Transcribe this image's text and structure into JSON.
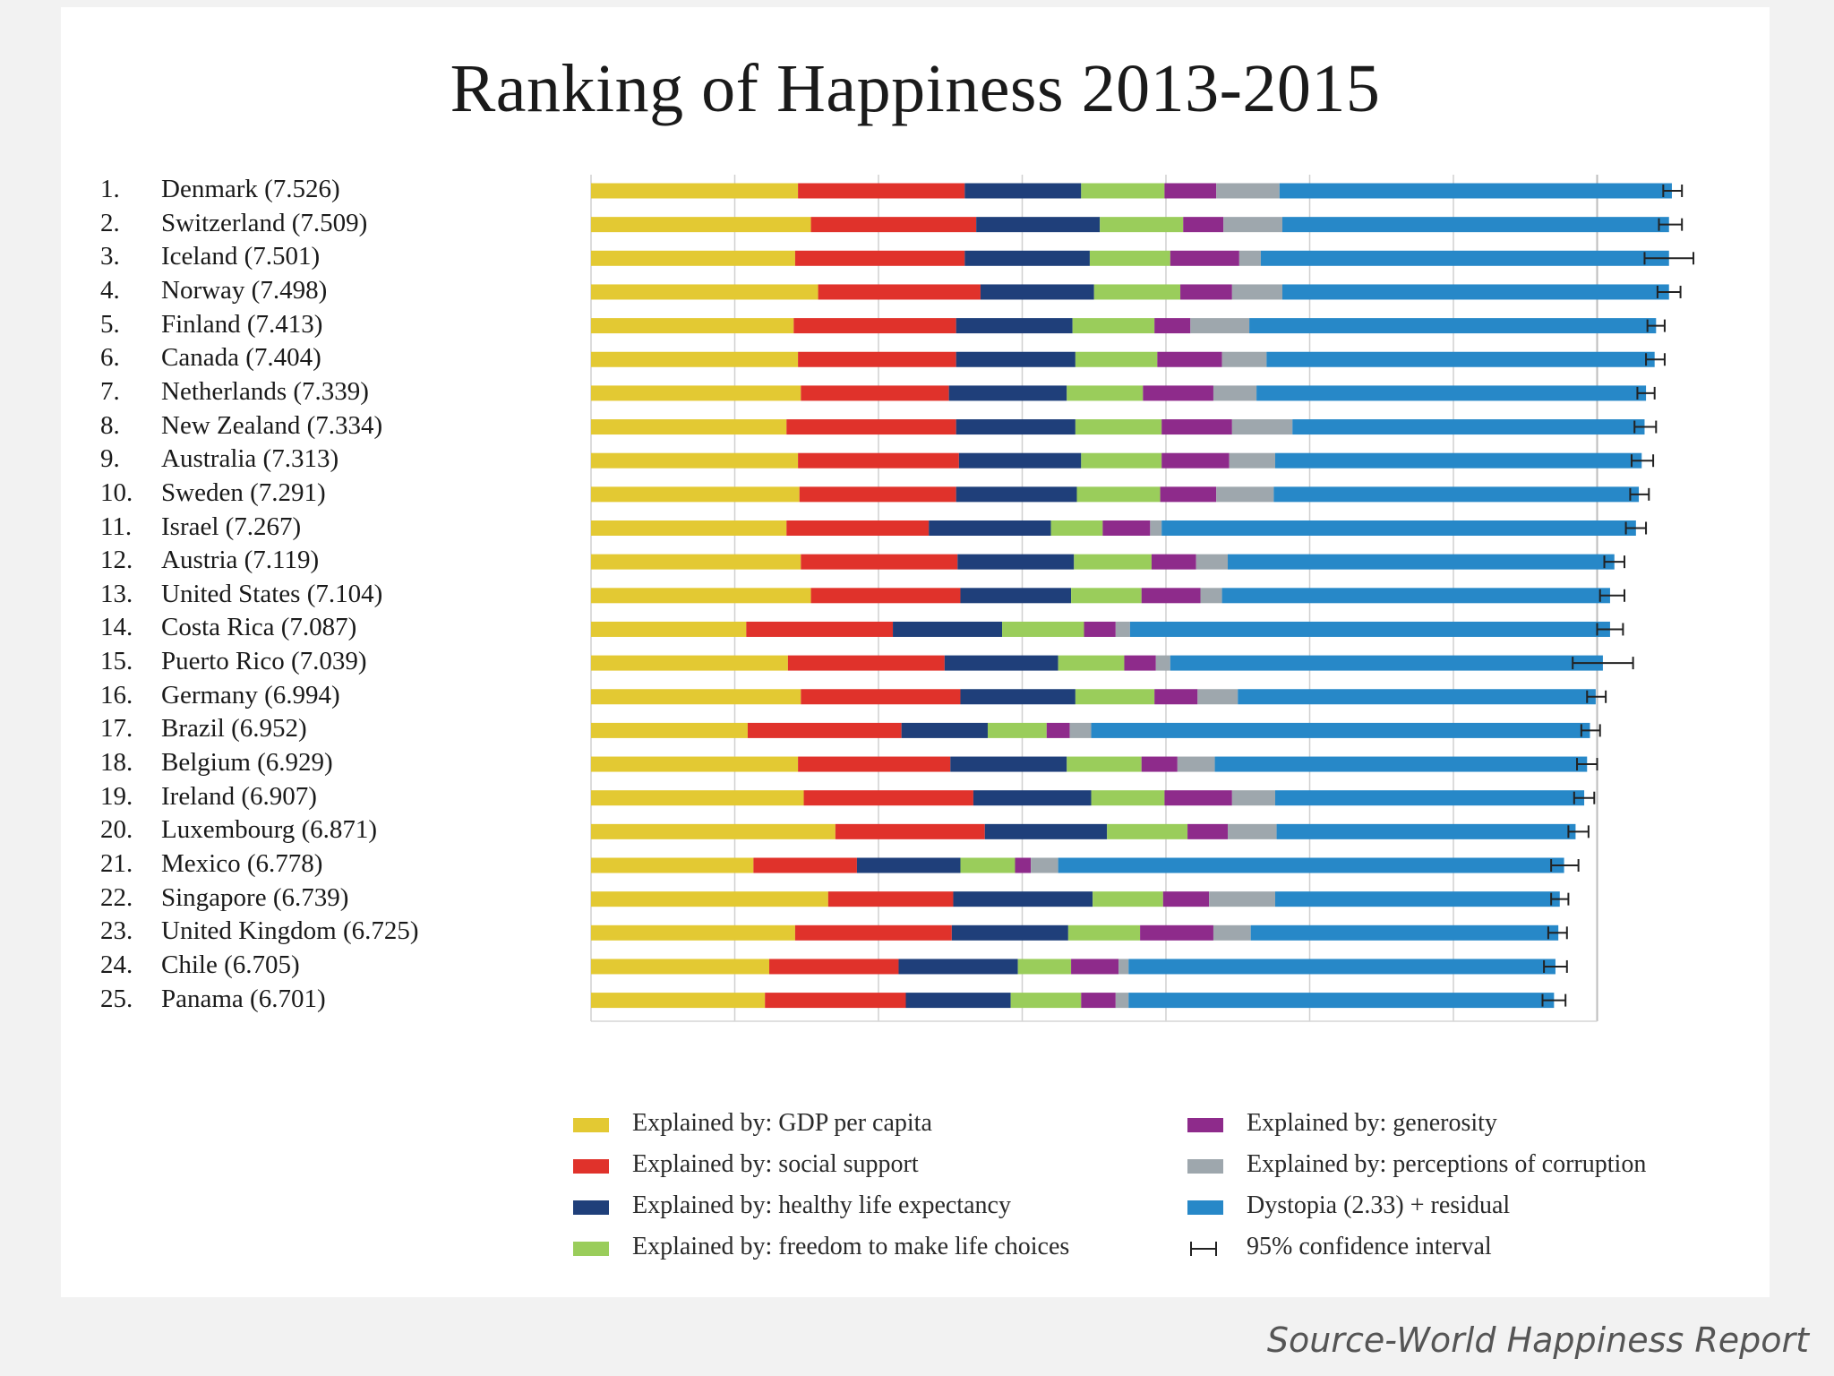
{
  "source": "Source-World Happiness Report",
  "chart_data": {
    "type": "bar",
    "orientation": "horizontal",
    "stacked": true,
    "title": "Ranking of Happiness 2013-2015",
    "xlim": [
      0,
      7
    ],
    "grid": true,
    "legend_position": "bottom",
    "components": [
      {
        "name": "Explained by: GDP per capita",
        "color": "#e3c933"
      },
      {
        "name": "Explained by: social support",
        "color": "#e0322b"
      },
      {
        "name": "Explained by: healthy life expectancy",
        "color": "#1f3f7a"
      },
      {
        "name": "Explained by: freedom to make life choices",
        "color": "#9acd5b"
      },
      {
        "name": "Explained by: generosity",
        "color": "#8e2b8b"
      },
      {
        "name": "Explained by: perceptions of corruption",
        "color": "#9ea7ad"
      },
      {
        "name": "Dystopia (2.33) + residual",
        "color": "#2788c8"
      }
    ],
    "ci_legend_label": "95% confidence interval",
    "rows": [
      {
        "rank": "1.",
        "label": "Denmark (7.526)",
        "values": [
          1.44,
          1.16,
          0.81,
          0.58,
          0.36,
          0.44,
          2.73
        ],
        "ci": [
          7.46,
          7.59
        ]
      },
      {
        "rank": "2.",
        "label": "Switzerland (7.509)",
        "values": [
          1.53,
          1.15,
          0.86,
          0.58,
          0.28,
          0.41,
          2.69
        ],
        "ci": [
          7.43,
          7.59
        ]
      },
      {
        "rank": "3.",
        "label": "Iceland (7.501)",
        "values": [
          1.42,
          1.18,
          0.87,
          0.56,
          0.48,
          0.15,
          2.84
        ],
        "ci": [
          7.33,
          7.67
        ]
      },
      {
        "rank": "4.",
        "label": "Norway (7.498)",
        "values": [
          1.58,
          1.13,
          0.79,
          0.6,
          0.36,
          0.35,
          2.69
        ],
        "ci": [
          7.42,
          7.58
        ]
      },
      {
        "rank": "5.",
        "label": "Finland (7.413)",
        "values": [
          1.41,
          1.13,
          0.81,
          0.57,
          0.25,
          0.41,
          2.83
        ],
        "ci": [
          7.35,
          7.47
        ]
      },
      {
        "rank": "6.",
        "label": "Canada (7.404)",
        "values": [
          1.44,
          1.1,
          0.83,
          0.57,
          0.45,
          0.31,
          2.7
        ],
        "ci": [
          7.34,
          7.47
        ]
      },
      {
        "rank": "7.",
        "label": "Netherlands (7.339)",
        "values": [
          1.46,
          1.03,
          0.82,
          0.53,
          0.49,
          0.3,
          2.71
        ],
        "ci": [
          7.28,
          7.4
        ]
      },
      {
        "rank": "8.",
        "label": "New Zealand (7.334)",
        "values": [
          1.36,
          1.18,
          0.83,
          0.6,
          0.49,
          0.42,
          2.45
        ],
        "ci": [
          7.26,
          7.41
        ]
      },
      {
        "rank": "9.",
        "label": "Australia (7.313)",
        "values": [
          1.44,
          1.12,
          0.85,
          0.56,
          0.47,
          0.32,
          2.55
        ],
        "ci": [
          7.24,
          7.39
        ]
      },
      {
        "rank": "10.",
        "label": "Sweden (7.291)",
        "values": [
          1.45,
          1.09,
          0.84,
          0.58,
          0.39,
          0.4,
          2.54
        ],
        "ci": [
          7.23,
          7.36
        ]
      },
      {
        "rank": "11.",
        "label": "Israel (7.267)",
        "values": [
          1.36,
          0.99,
          0.85,
          0.36,
          0.33,
          0.08,
          3.3
        ],
        "ci": [
          7.2,
          7.34
        ]
      },
      {
        "rank": "12.",
        "label": "Austria (7.119)",
        "values": [
          1.46,
          1.09,
          0.81,
          0.54,
          0.31,
          0.22,
          2.69
        ],
        "ci": [
          7.05,
          7.19
        ]
      },
      {
        "rank": "13.",
        "label": "United States (7.104)",
        "values": [
          1.53,
          1.04,
          0.77,
          0.49,
          0.41,
          0.15,
          2.7
        ],
        "ci": [
          7.02,
          7.19
        ]
      },
      {
        "rank": "14.",
        "label": "Costa Rica (7.087)",
        "values": [
          1.08,
          1.02,
          0.76,
          0.57,
          0.22,
          0.1,
          3.34
        ],
        "ci": [
          7.0,
          7.18
        ]
      },
      {
        "rank": "15.",
        "label": "Puerto Rico (7.039)",
        "values": [
          1.37,
          1.09,
          0.79,
          0.46,
          0.22,
          0.1,
          3.01
        ],
        "ci": [
          6.83,
          7.25
        ]
      },
      {
        "rank": "16.",
        "label": "Germany (6.994)",
        "values": [
          1.46,
          1.11,
          0.8,
          0.55,
          0.3,
          0.28,
          2.49
        ],
        "ci": [
          6.93,
          7.06
        ]
      },
      {
        "rank": "17.",
        "label": "Brazil (6.952)",
        "values": [
          1.09,
          1.07,
          0.6,
          0.41,
          0.16,
          0.15,
          3.47
        ],
        "ci": [
          6.89,
          7.02
        ]
      },
      {
        "rank": "18.",
        "label": "Belgium (6.929)",
        "values": [
          1.44,
          1.06,
          0.81,
          0.52,
          0.25,
          0.26,
          2.59
        ],
        "ci": [
          6.86,
          7.0
        ]
      },
      {
        "rank": "19.",
        "label": "Ireland (6.907)",
        "values": [
          1.48,
          1.18,
          0.82,
          0.51,
          0.47,
          0.3,
          2.15
        ],
        "ci": [
          6.84,
          6.98
        ]
      },
      {
        "rank": "20.",
        "label": "Luxembourg (6.871)",
        "values": [
          1.7,
          1.04,
          0.85,
          0.56,
          0.28,
          0.34,
          2.08
        ],
        "ci": [
          6.8,
          6.94
        ]
      },
      {
        "rank": "21.",
        "label": "Mexico (6.778)",
        "values": [
          1.13,
          0.72,
          0.72,
          0.38,
          0.11,
          0.19,
          3.52
        ],
        "ci": [
          6.68,
          6.87
        ]
      },
      {
        "rank": "22.",
        "label": "Singapore (6.739)",
        "values": [
          1.65,
          0.87,
          0.97,
          0.49,
          0.32,
          0.46,
          1.98
        ],
        "ci": [
          6.68,
          6.8
        ]
      },
      {
        "rank": "23.",
        "label": "United Kingdom (6.725)",
        "values": [
          1.42,
          1.09,
          0.81,
          0.5,
          0.51,
          0.26,
          2.14
        ],
        "ci": [
          6.66,
          6.79
        ]
      },
      {
        "rank": "24.",
        "label": "Chile (6.705)",
        "values": [
          1.24,
          0.9,
          0.83,
          0.37,
          0.33,
          0.07,
          2.97
        ],
        "ci": [
          6.63,
          6.79
        ]
      },
      {
        "rank": "25.",
        "label": "Panama (6.701)",
        "values": [
          1.21,
          0.98,
          0.73,
          0.49,
          0.24,
          0.09,
          2.96
        ],
        "ci": [
          6.62,
          6.78
        ]
      }
    ]
  }
}
